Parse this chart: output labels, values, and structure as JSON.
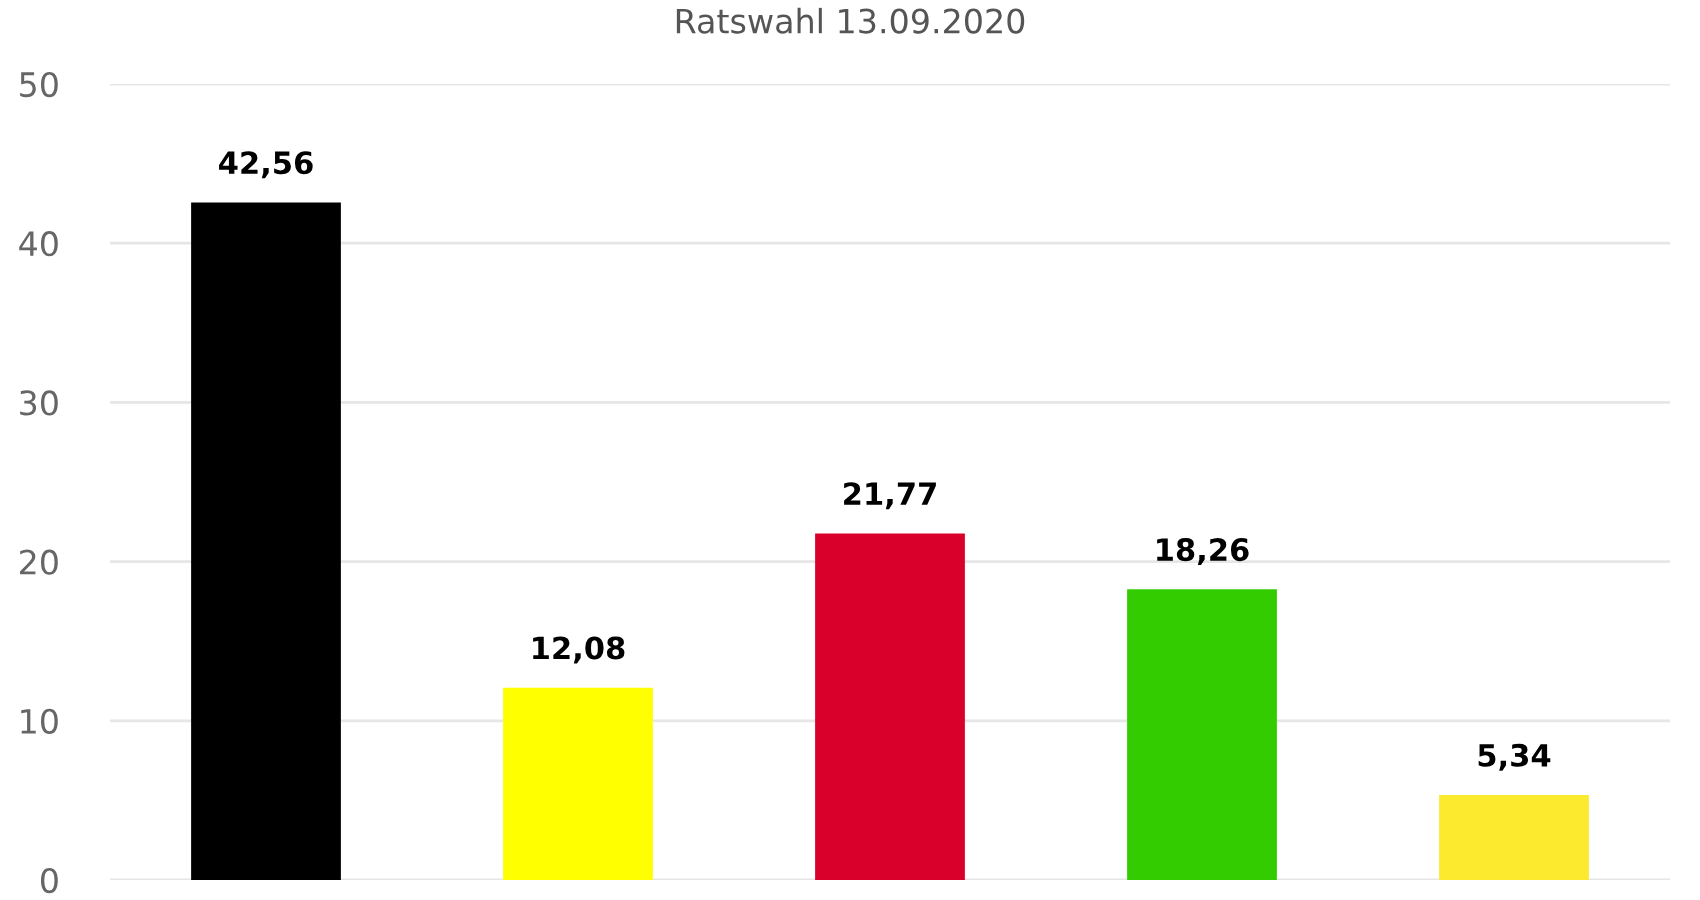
{
  "chart_data": {
    "type": "bar",
    "title": "Ratswahl 13.09.2020",
    "categories": [
      null,
      null,
      null,
      null,
      null
    ],
    "values": [
      42.56,
      12.08,
      21.77,
      18.26,
      5.34
    ],
    "colors": [
      "#000000",
      "#ffff00",
      "#d9002b",
      "#33cc00",
      "#fcea2f"
    ],
    "value_labels": [
      "42,56",
      "12,08",
      "21,77",
      "18,26",
      "5,34"
    ],
    "ylim": [
      0,
      50
    ],
    "yticks": [
      0,
      10,
      20,
      30,
      40,
      50
    ],
    "grid": "y",
    "legend": false
  }
}
